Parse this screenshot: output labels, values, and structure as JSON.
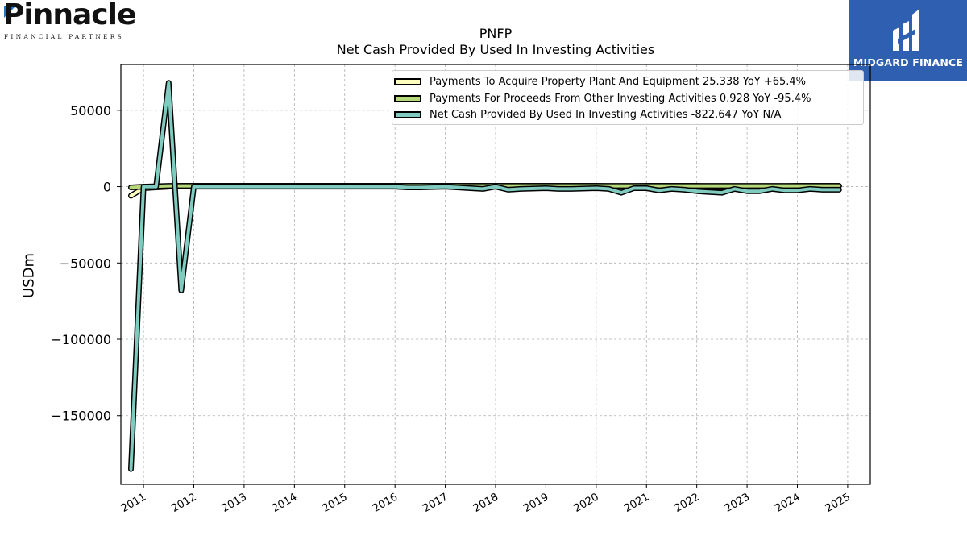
{
  "logos": {
    "left": {
      "name": "Pinnacle",
      "tagline": "FINANCIAL PARTNERS",
      "tm": "™"
    },
    "right": {
      "name": "MIDGARD FINANCE"
    }
  },
  "colors": {
    "ppe": "#ffffc0",
    "other": "#b5d97a",
    "net": "#80cbbf",
    "outline": "#000000",
    "logo_right_bg": "#2f5fb0"
  },
  "chart_data": {
    "type": "line",
    "title": "PNFP",
    "subtitle": "Net Cash Provided By Used In Investing Activities",
    "ylabel": "USDm",
    "xlabel": "",
    "xlim": [
      2010.55,
      2025.45
    ],
    "ylim": [
      -195000,
      80000
    ],
    "yticks": [
      50000,
      0,
      -50000,
      -100000,
      -150000
    ],
    "ytick_labels": [
      "50000",
      "0",
      "−50000",
      "−100000",
      "−150000"
    ],
    "xticks": [
      2011,
      2012,
      2013,
      2014,
      2015,
      2016,
      2017,
      2018,
      2019,
      2020,
      2021,
      2022,
      2023,
      2024,
      2025
    ],
    "xtick_labels": [
      "2011",
      "2012",
      "2013",
      "2014",
      "2015",
      "2016",
      "2017",
      "2018",
      "2019",
      "2020",
      "2021",
      "2022",
      "2023",
      "2024",
      "2025"
    ],
    "grid": true,
    "legend_position": "top-right",
    "series": [
      {
        "name": "Payments To Acquire Property Plant And Equipment",
        "legend": "Payments To Acquire Property Plant And Equipment  25.338 YoY +65.4%",
        "x": [
          2010.75,
          2011.0,
          2011.25,
          2011.5,
          2011.75,
          2012.0,
          2013.0,
          2014.0,
          2015.0,
          2016.0,
          2017.0,
          2018.0,
          2019.0,
          2020.0,
          2020.5,
          2021.0,
          2021.5,
          2022.0,
          2022.5,
          2023.0,
          2023.5,
          2024.0,
          2024.5,
          2024.83
        ],
        "y": [
          -6000,
          -1000,
          -500,
          0,
          500,
          500,
          500,
          500,
          500,
          500,
          500,
          500,
          500,
          500,
          0,
          500,
          500,
          500,
          -500,
          0,
          0,
          500,
          500,
          500
        ]
      },
      {
        "name": "Payments For Proceeds From Other Investing Activities",
        "legend": "Payments For Proceeds From Other Investing Activities  0.928 YoY -95.4%",
        "x": [
          2010.75,
          2011.0,
          2011.5,
          2012.0,
          2013.0,
          2014.0,
          2015.0,
          2016.0,
          2017.0,
          2018.0,
          2019.0,
          2020.0,
          2021.0,
          2022.0,
          2022.5,
          2023.0,
          2024.0,
          2024.83
        ],
        "y": [
          -500,
          0,
          500,
          500,
          500,
          500,
          500,
          500,
          500,
          500,
          500,
          500,
          500,
          500,
          500,
          500,
          500,
          500
        ]
      },
      {
        "name": "Net Cash Provided By Used In Investing Activities",
        "legend": "Net Cash Provided By Used In Investing Activities  -822.647 YoY N/A",
        "x": [
          2010.75,
          2011.0,
          2011.25,
          2011.5,
          2011.75,
          2012.0,
          2012.5,
          2013.0,
          2013.5,
          2014.0,
          2014.5,
          2015.0,
          2015.5,
          2016.0,
          2016.25,
          2016.5,
          2017.0,
          2017.5,
          2017.75,
          2018.0,
          2018.25,
          2018.5,
          2019.0,
          2019.25,
          2019.5,
          2020.0,
          2020.25,
          2020.5,
          2020.75,
          2021.0,
          2021.25,
          2021.5,
          2021.75,
          2022.0,
          2022.25,
          2022.5,
          2022.75,
          2023.0,
          2023.25,
          2023.5,
          2023.75,
          2024.0,
          2024.25,
          2024.5,
          2024.83
        ],
        "y": [
          -185000,
          0,
          0,
          68000,
          -68000,
          0,
          0,
          0,
          0,
          0,
          0,
          0,
          0,
          0,
          -500,
          -500,
          0,
          -1000,
          -1500,
          0,
          -2000,
          -1500,
          -1000,
          -1500,
          -1500,
          -1000,
          -1500,
          -4000,
          -1000,
          -1000,
          -2500,
          -1500,
          -2000,
          -3000,
          -3500,
          -4000,
          -1500,
          -3000,
          -3000,
          -1500,
          -2500,
          -2500,
          -1500,
          -2000,
          -2000
        ]
      }
    ]
  }
}
